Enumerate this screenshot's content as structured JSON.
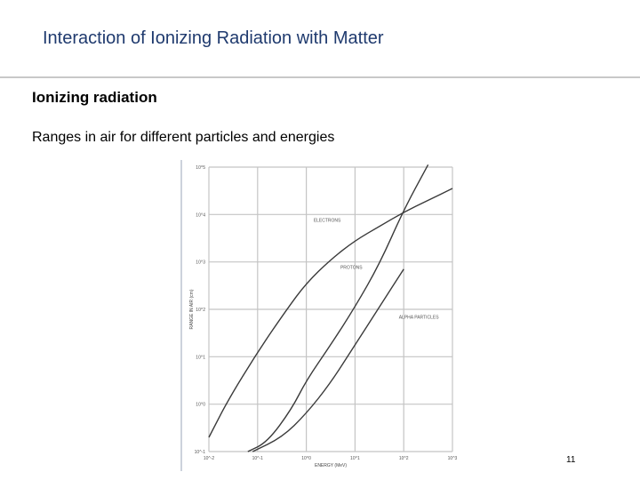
{
  "slide": {
    "title": "Interaction of Ionizing Radiation with Matter",
    "heading": "Ionizing radiation",
    "subtext": "Ranges in air for different particles and energies",
    "page_number": "11"
  },
  "colors": {
    "title": "#1f3a6e",
    "rule": "#c8c8c8",
    "grid": "#c4c4c4",
    "curve": "#3a3a3a"
  },
  "chart_data": {
    "type": "line",
    "xscale": "log",
    "yscale": "log",
    "xlabel": "ENERGY (MeV)",
    "ylabel": "RANGE IN AIR (cm)",
    "xlim_exp": [
      -2,
      3
    ],
    "ylim_exp": [
      -1,
      5
    ],
    "x_ticks": [
      {
        "exp": -2,
        "label": "10^-2"
      },
      {
        "exp": -1,
        "label": "10^-1"
      },
      {
        "exp": 0,
        "label": "10^0"
      },
      {
        "exp": 1,
        "label": "10^1"
      },
      {
        "exp": 2,
        "label": "10^2"
      },
      {
        "exp": 3,
        "label": "10^3"
      }
    ],
    "y_ticks": [
      {
        "exp": -1,
        "label": "10^-1"
      },
      {
        "exp": 0,
        "label": "10^0"
      },
      {
        "exp": 1,
        "label": "10^1"
      },
      {
        "exp": 2,
        "label": "10^2"
      },
      {
        "exp": 3,
        "label": "10^3"
      },
      {
        "exp": 4,
        "label": "10^4"
      },
      {
        "exp": 5,
        "label": "10^5"
      }
    ],
    "series": [
      {
        "name": "ELECTRONS",
        "points_log": [
          [
            -2,
            -0.7
          ],
          [
            -1.6,
            0.1
          ],
          [
            -1.0,
            1.1
          ],
          [
            -0.4,
            2.0
          ],
          [
            0,
            2.55
          ],
          [
            0.5,
            3.05
          ],
          [
            1.0,
            3.45
          ],
          [
            1.5,
            3.75
          ],
          [
            2.0,
            4.05
          ],
          [
            2.5,
            4.3
          ],
          [
            3.0,
            4.55
          ]
        ],
        "label_at_log": [
          0.15,
          3.85
        ]
      },
      {
        "name": "PROTONS",
        "points_log": [
          [
            -1.2,
            -1.0
          ],
          [
            -0.8,
            -0.8
          ],
          [
            -0.3,
            -0.1
          ],
          [
            0,
            0.5
          ],
          [
            0.5,
            1.25
          ],
          [
            1.0,
            2.05
          ],
          [
            1.5,
            2.95
          ],
          [
            2.0,
            4.1
          ],
          [
            2.5,
            5.05
          ]
        ],
        "label_at_log": [
          0.7,
          2.85
        ]
      },
      {
        "name": "ALPHA PARTICLES",
        "points_log": [
          [
            -1.1,
            -1.0
          ],
          [
            -0.5,
            -0.7
          ],
          [
            0,
            -0.2
          ],
          [
            0.5,
            0.45
          ],
          [
            1.0,
            1.25
          ],
          [
            1.5,
            2.05
          ],
          [
            2.0,
            2.85
          ]
        ],
        "label_at_log": [
          1.9,
          1.8
        ]
      }
    ]
  }
}
